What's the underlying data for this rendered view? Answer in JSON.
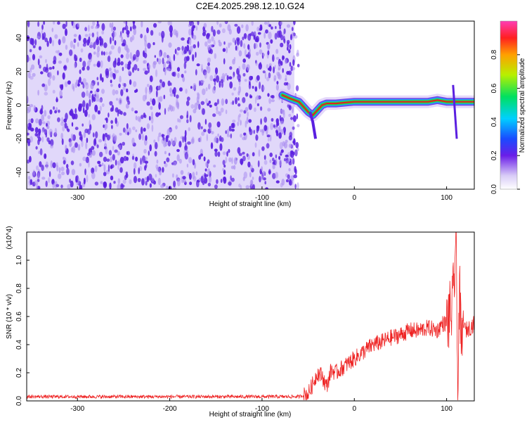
{
  "title": "C2E4.2025.298.12.10.G24",
  "colors": {
    "snr_line": "#ee2222",
    "ridge_core": "#dd2222",
    "ridge_mid": "#22dd44",
    "ridge_edge": "#2299ff",
    "noise": "#5a1fe0",
    "noise_light": "#c9b8f5"
  },
  "chart_data": [
    {
      "type": "heatmap",
      "xlabel": "Height of straight line (km)",
      "ylabel": "Frequency (Hz)",
      "xlim": [
        -355,
        130
      ],
      "ylim": [
        -50,
        50
      ],
      "xticks": [
        -300,
        -200,
        -100,
        0,
        100
      ],
      "yticks": [
        -40,
        -20,
        0,
        20,
        40
      ],
      "colorbar": {
        "label": "Normalized spectral amplitude",
        "range": [
          0,
          1
        ],
        "ticks": [
          "0.0",
          "0.2",
          "0.4",
          "0.6",
          "0.8"
        ],
        "tick_values": [
          0,
          0.2,
          0.4,
          0.6,
          0.8
        ],
        "colormap": "rainbow"
      },
      "noise_region_x": [
        -355,
        -65
      ],
      "signal_ridge": {
        "x": [
          -78,
          -70,
          -60,
          -50,
          -45,
          -40,
          -35,
          -30,
          -20,
          -10,
          0,
          20,
          40,
          60,
          80,
          90,
          100,
          105,
          110,
          130
        ],
        "y": [
          6,
          4,
          2,
          -4,
          -6,
          -3,
          0,
          1,
          1,
          1.5,
          2,
          2,
          2,
          2,
          2,
          3,
          2,
          2,
          2,
          2
        ]
      },
      "secondary_features": {
        "lower_branch_near_x_-45": [
          -10,
          -20
        ],
        "spike_near_x_110": [
          -20,
          12
        ]
      }
    },
    {
      "type": "line",
      "xlabel": "Height of straight line (km)",
      "ylabel": "SNR (10 * v/v)",
      "y_multiplier": "(x10^4)",
      "xlim": [
        -355,
        130
      ],
      "ylim": [
        0,
        1.2
      ],
      "xticks": [
        -300,
        -200,
        -100,
        0,
        100
      ],
      "yticks": [
        0.0,
        0.2,
        0.4,
        0.6,
        0.8,
        1.0
      ],
      "series": [
        {
          "x": [
            -355,
            -300,
            -250,
            -200,
            -150,
            -100,
            -80,
            -60,
            -50,
            -45,
            -40,
            -35,
            -30,
            -25,
            -20,
            -10,
            0,
            10,
            20,
            30,
            40,
            50,
            60,
            70,
            80,
            90,
            95,
            100,
            103,
            106,
            108,
            110,
            112,
            114,
            116,
            118,
            120,
            125,
            130
          ],
          "values": [
            0.03,
            0.03,
            0.03,
            0.03,
            0.03,
            0.03,
            0.03,
            0.03,
            0.05,
            0.12,
            0.2,
            0.18,
            0.1,
            0.22,
            0.2,
            0.25,
            0.3,
            0.35,
            0.4,
            0.42,
            0.45,
            0.47,
            0.5,
            0.5,
            0.52,
            0.5,
            0.55,
            0.55,
            0.6,
            0.65,
            0.8,
            1.2,
            0.1,
            0.8,
            0.3,
            0.6,
            0.5,
            0.52,
            0.55
          ]
        }
      ]
    }
  ]
}
